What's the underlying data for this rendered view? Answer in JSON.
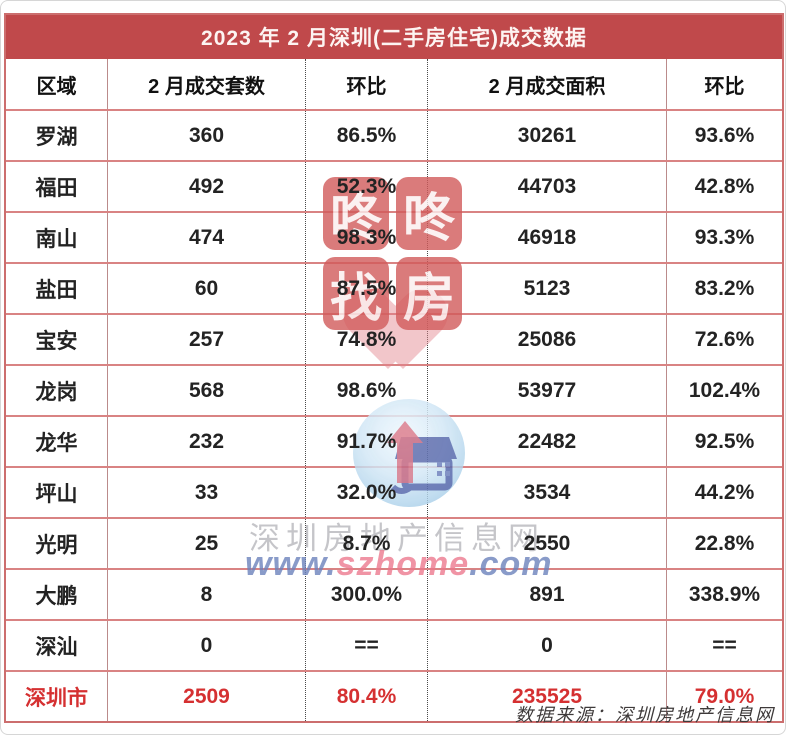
{
  "chart_data": {
    "type": "table",
    "title": "2023 年 2 月深圳(二手房住宅)成交数据",
    "columns": [
      "区域",
      "2 月成交套数",
      "环比",
      "2 月成交面积",
      "环比"
    ],
    "rows": [
      {
        "region": "罗湖",
        "units": "360",
        "units_mom": "86.5%",
        "area": "30261",
        "area_mom": "93.6%"
      },
      {
        "region": "福田",
        "units": "492",
        "units_mom": "52.3%",
        "area": "44703",
        "area_mom": "42.8%"
      },
      {
        "region": "南山",
        "units": "474",
        "units_mom": "98.3%",
        "area": "46918",
        "area_mom": "93.3%"
      },
      {
        "region": "盐田",
        "units": "60",
        "units_mom": "87.5%",
        "area": "5123",
        "area_mom": "83.2%"
      },
      {
        "region": "宝安",
        "units": "257",
        "units_mom": "74.8%",
        "area": "25086",
        "area_mom": "72.6%"
      },
      {
        "region": "龙岗",
        "units": "568",
        "units_mom": "98.6%",
        "area": "53977",
        "area_mom": "102.4%"
      },
      {
        "region": "龙华",
        "units": "232",
        "units_mom": "91.7%",
        "area": "22482",
        "area_mom": "92.5%"
      },
      {
        "region": "坪山",
        "units": "33",
        "units_mom": "32.0%",
        "area": "3534",
        "area_mom": "44.2%"
      },
      {
        "region": "光明",
        "units": "25",
        "units_mom": "8.7%",
        "area": "2550",
        "area_mom": "22.8%"
      },
      {
        "region": "大鹏",
        "units": "8",
        "units_mom": "300.0%",
        "area": "891",
        "area_mom": "338.9%"
      },
      {
        "region": "深汕",
        "units": "0",
        "units_mom": "==",
        "area": "0",
        "area_mom": "=="
      },
      {
        "region": "深圳市",
        "units": "2509",
        "units_mom": "80.4%",
        "area": "235525",
        "area_mom": "79.0%",
        "is_total": true
      }
    ],
    "colors": {
      "title_bg": "#c0494b",
      "total_text": "#d53031",
      "grid_line": "#d98383",
      "stamp_red": "#d25b5b"
    }
  },
  "footer": {
    "source": "数据来源：深圳房地产信息网"
  },
  "watermarks": {
    "stamp_chars": [
      "咚",
      "咚",
      "找",
      "房"
    ],
    "site_text": "深圳房地产信息网",
    "url_www": "www.",
    "url_host": "szhome",
    "url_tld": ".com"
  }
}
